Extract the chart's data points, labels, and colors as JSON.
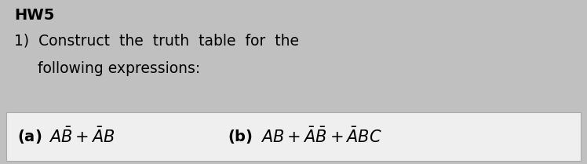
{
  "bg_color": "#c0c0c0",
  "white_box_color": "#efefef",
  "white_box_border": "#aaaaaa",
  "title": "HW5",
  "line1": "1)  Construct  the  truth  table  for  the",
  "line2": "     following expressions:",
  "title_fontsize": 14,
  "body_fontsize": 13.5,
  "expr_fontsize": 14,
  "figw": 7.48,
  "figh": 2.09,
  "dpi": 100
}
